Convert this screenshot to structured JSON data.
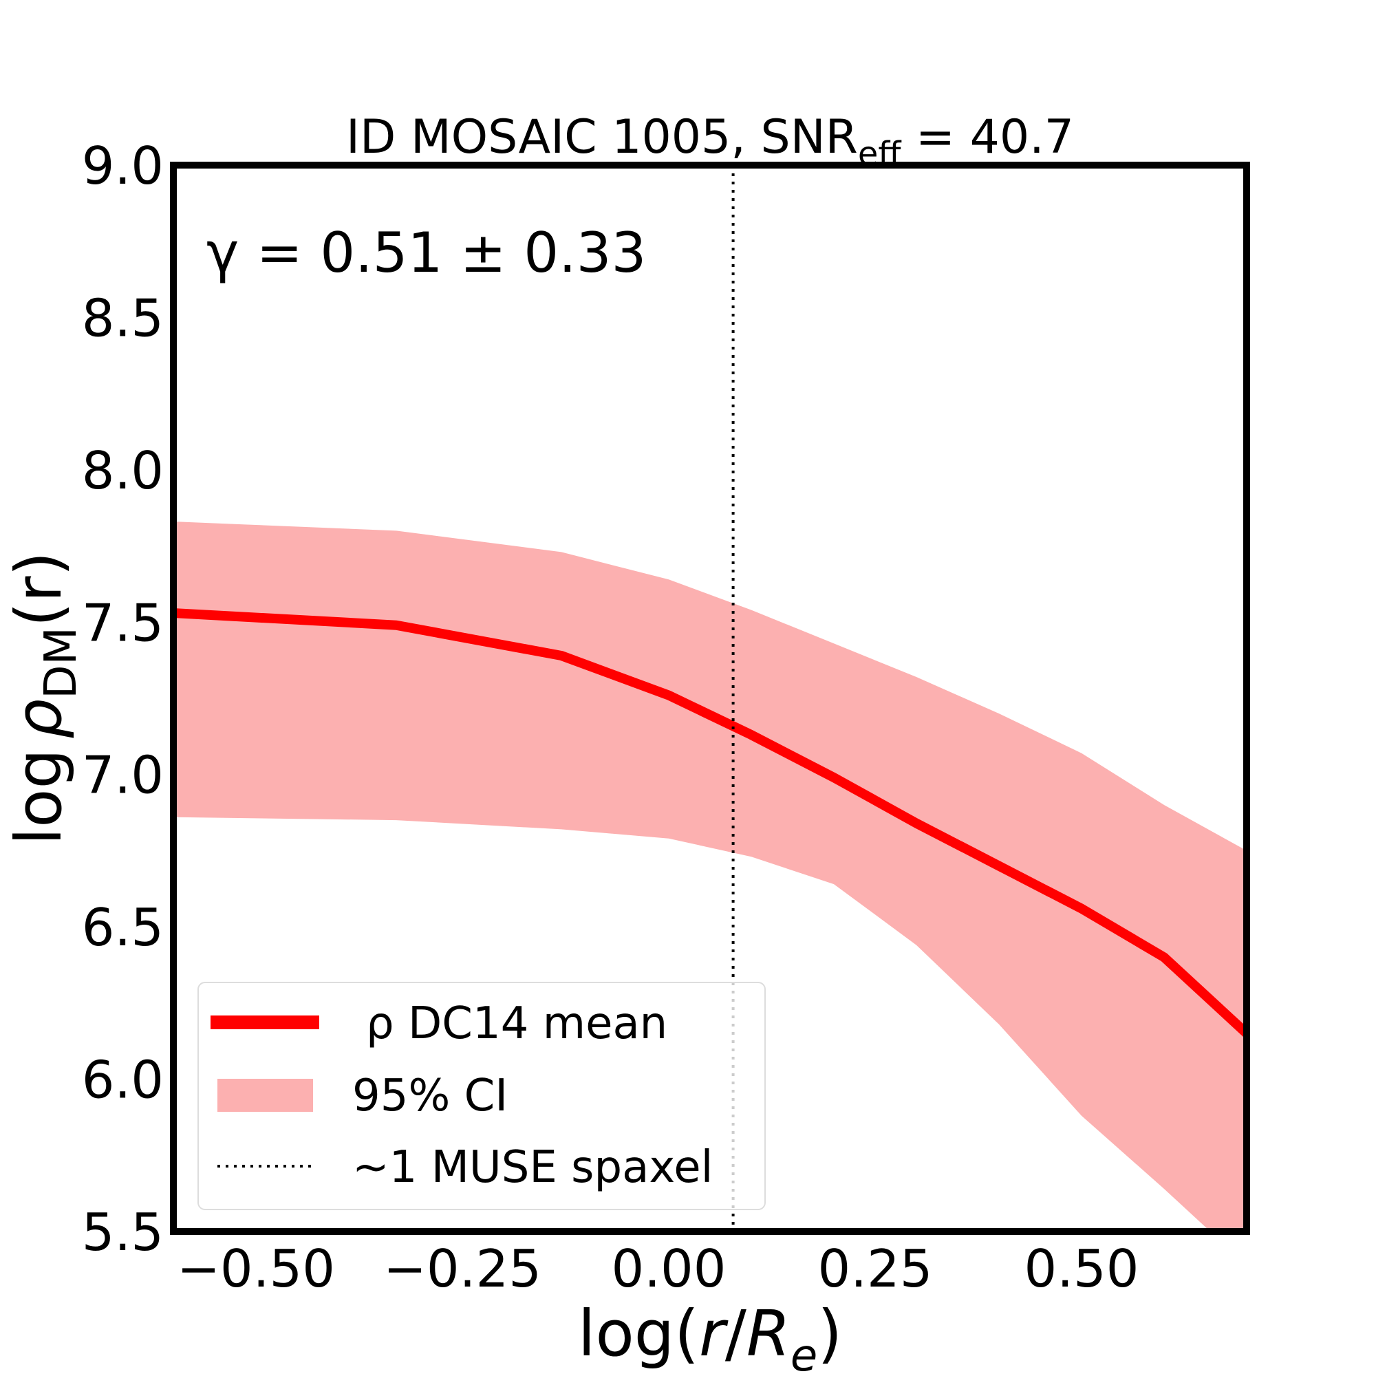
{
  "chart_data": {
    "type": "line",
    "title": "ID MOSAIC 1005, SNR_eff = 40.7",
    "title_parts": {
      "main": "ID MOSAIC 1005, SNR",
      "sub": "eff",
      "tail": " = 40.7"
    },
    "xlabel": "log(r/R_e)",
    "xlabel_parts": {
      "pre": "log(",
      "r": "r",
      "slash": "/",
      "R": "R",
      "sub": "e",
      "post": ")"
    },
    "ylabel": "log ρ_DM(r)",
    "ylabel_parts": {
      "pre": "log",
      "rho": "ρ",
      "sub": "DM",
      "post": "(r)"
    },
    "xlim": [
      -0.6,
      0.7
    ],
    "ylim": [
      5.5,
      9.0
    ],
    "xticks": [
      -0.5,
      -0.25,
      0.0,
      0.25,
      0.5
    ],
    "xtick_labels": [
      "−0.50",
      "−0.25",
      "0.00",
      "0.25",
      "0.50"
    ],
    "yticks": [
      5.5,
      6.0,
      6.5,
      7.0,
      7.5,
      8.0,
      8.5,
      9.0
    ],
    "ytick_labels": [
      "5.5",
      "6.0",
      "6.5",
      "7.0",
      "7.5",
      "8.0",
      "8.5",
      "9.0"
    ],
    "annotation": "γ = 0.51 ± 0.33",
    "vline": {
      "x": 0.078,
      "style": "dotted"
    },
    "series": [
      {
        "name": "ρ DC14 mean",
        "role": "line",
        "color": "#ff0000",
        "x": [
          -0.6,
          -0.33,
          -0.13,
          -0.0,
          0.1,
          0.2,
          0.3,
          0.4,
          0.5,
          0.6,
          0.7
        ],
        "y": [
          7.53,
          7.49,
          7.39,
          7.26,
          7.13,
          6.99,
          6.84,
          6.7,
          6.56,
          6.4,
          6.15
        ]
      },
      {
        "name": "95% CI",
        "role": "band",
        "color": "#fcb0b0",
        "x": [
          -0.6,
          -0.33,
          -0.13,
          -0.0,
          0.1,
          0.2,
          0.3,
          0.4,
          0.5,
          0.6,
          0.7
        ],
        "upper": [
          7.83,
          7.8,
          7.73,
          7.64,
          7.54,
          7.43,
          7.32,
          7.2,
          7.07,
          6.9,
          6.75
        ],
        "lower": [
          6.86,
          6.85,
          6.82,
          6.79,
          6.73,
          6.64,
          6.44,
          6.18,
          5.88,
          5.64,
          5.39
        ]
      }
    ],
    "legend": {
      "position": "lower-left",
      "entries": [
        {
          "label": "ρ DC14 mean",
          "kind": "line"
        },
        {
          "label": "95% CI",
          "kind": "patch"
        },
        {
          "label": "~1 MUSE spaxel",
          "kind": "dotted"
        }
      ]
    }
  }
}
